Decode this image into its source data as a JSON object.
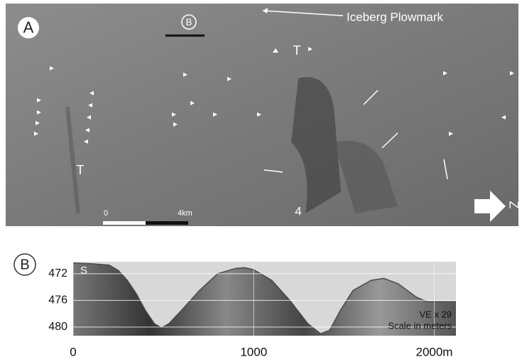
{
  "panel_a": {
    "label": "A",
    "marker": "B",
    "plowmark": "Iceberg Plowmark",
    "trough_1": "T",
    "trough_2": "T",
    "feature": "4",
    "scale_start": "0",
    "scale_end": "4km",
    "north": "Z"
  },
  "chart_data": {
    "type": "area",
    "label": "B",
    "start_label": "S",
    "annotation_1": "VE x 29",
    "annotation_2": "Scale in meters",
    "color": "#4a4a4a",
    "x": [
      0,
      100,
      200,
      250,
      300,
      350,
      400,
      450,
      490,
      530,
      600,
      700,
      800,
      900,
      950,
      1000,
      1100,
      1200,
      1300,
      1370,
      1420,
      1480,
      1550,
      1650,
      1720,
      1800,
      1900,
      1960,
      2050,
      2120
    ],
    "values": [
      470.4,
      470.5,
      470.7,
      471.5,
      473,
      475,
      477.5,
      479.5,
      480.1,
      479.5,
      477.5,
      474.5,
      472,
      471.2,
      471.1,
      471.4,
      473,
      476,
      479.5,
      481,
      480.5,
      477.5,
      474.5,
      473,
      472.7,
      473.5,
      475.5,
      476.2,
      476.2,
      476.2
    ],
    "xlim": [
      0,
      2120
    ],
    "xticks": [
      0,
      1000,
      {
        "value": 2000,
        "label": "2000m"
      }
    ],
    "ylim": [
      470.2,
      481.3
    ],
    "yticks": [
      472,
      476,
      480
    ],
    "inverted_y": true,
    "grid": true
  }
}
